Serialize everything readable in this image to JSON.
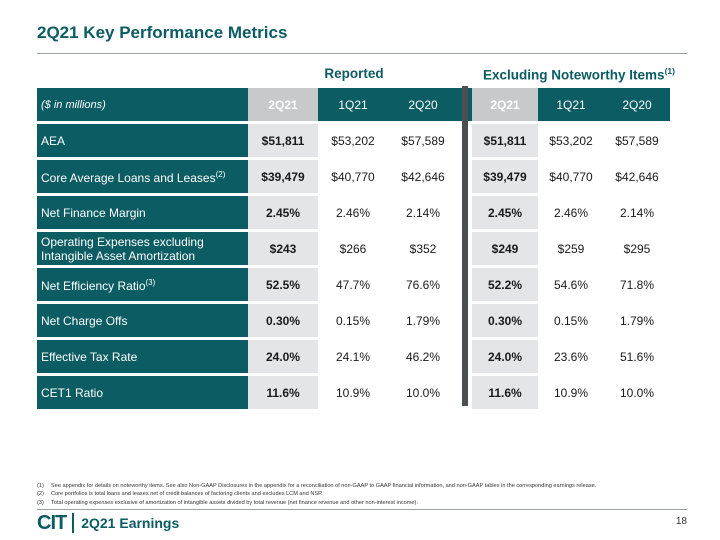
{
  "slide": {
    "title": "2Q21 Key Performance Metrics",
    "page_number": "18",
    "footer_brand": "CIT",
    "footer_text": "2Q21 Earnings"
  },
  "groups": {
    "reported": "Reported",
    "excluding": "Excluding Noteworthy Items",
    "excluding_note": "(1)"
  },
  "header": {
    "unit_label": "($ in millions)",
    "columns": [
      "2Q21",
      "1Q21",
      "2Q20",
      "2Q21",
      "1Q21",
      "2Q20"
    ]
  },
  "rows": [
    {
      "label": "AEA",
      "note": "",
      "values": [
        "$51,811",
        "$53,202",
        "$57,589",
        "$51,811",
        "$53,202",
        "$57,589"
      ]
    },
    {
      "label": "Core Average Loans and Leases",
      "note": "(2)",
      "values": [
        "$39,479",
        "$40,770",
        "$42,646",
        "$39,479",
        "$40,770",
        "$42,646"
      ]
    },
    {
      "label": "Net Finance Margin",
      "note": "",
      "values": [
        "2.45%",
        "2.46%",
        "2.14%",
        "2.45%",
        "2.46%",
        "2.14%"
      ]
    },
    {
      "label": "Operating Expenses excluding Intangible Asset Amortization",
      "note": "",
      "values": [
        "$243",
        "$266",
        "$352",
        "$249",
        "$259",
        "$295"
      ]
    },
    {
      "label": "Net Efficiency Ratio",
      "note": "(3)",
      "values": [
        "52.5%",
        "47.7%",
        "76.6%",
        "52.2%",
        "54.6%",
        "71.8%"
      ]
    },
    {
      "label": "Net Charge Offs",
      "note": "",
      "values": [
        "0.30%",
        "0.15%",
        "1.79%",
        "0.30%",
        "0.15%",
        "1.79%"
      ]
    },
    {
      "label": "Effective Tax Rate",
      "note": "",
      "values": [
        "24.0%",
        "24.1%",
        "46.2%",
        "24.0%",
        "23.6%",
        "51.6%"
      ]
    },
    {
      "label": "CET1 Ratio",
      "note": "",
      "values": [
        "11.6%",
        "10.9%",
        "10.0%",
        "11.6%",
        "10.9%",
        "10.0%"
      ]
    }
  ],
  "footnotes": [
    {
      "num": "(1)",
      "text": "See appendix for details on noteworthy items. See also Non-GAAP Disclosures in the appendix for a reconciliation of non-GAAP to GAAP financial information, and non-GAAP tables in the corresponding earnings release."
    },
    {
      "num": "(2)",
      "text": "Core portfolios is total loans and leases net of credit balances of factoring clients and excludes LCM and NSP."
    },
    {
      "num": "(3)",
      "text": "Total operating expenses exclusive of amortization of intangible assets divided by total revenue (net finance revenue and other non-interest income)."
    }
  ],
  "colors": {
    "brand": "#0b5c63",
    "highlight": "#e4e5e6",
    "header_highlight": "#c8c9cb"
  }
}
